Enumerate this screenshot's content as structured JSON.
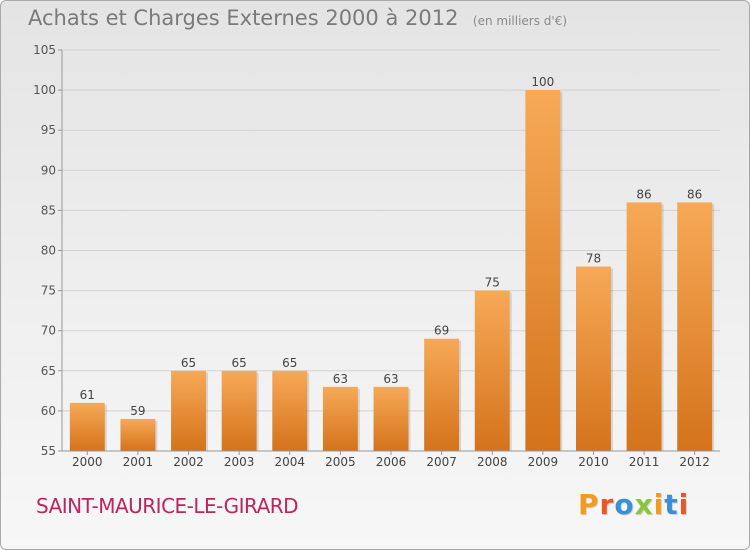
{
  "header": {
    "title": "Achats et Charges Externes 2000 à 2012",
    "unit_note": "(en milliers d'€)"
  },
  "footer": {
    "commune": "SAINT-MAURICE-LE-GIRARD",
    "logo_text": "Proxiti"
  },
  "colors": {
    "bar_light": "#f7a957",
    "bar_dark": "#d4731b",
    "commune": "#c0245f",
    "logo": [
      "#f39a1f",
      "#e8572a",
      "#3b8fd6",
      "#8bc53f",
      "#f39a1f",
      "#3b8fd6",
      "#e8572a"
    ]
  },
  "chart_data": {
    "type": "bar",
    "categories": [
      "2000",
      "2001",
      "2002",
      "2003",
      "2004",
      "2005",
      "2006",
      "2007",
      "2008",
      "2009",
      "2010",
      "2011",
      "2012"
    ],
    "values": [
      61,
      59,
      65,
      65,
      65,
      63,
      63,
      69,
      75,
      100,
      78,
      86,
      86
    ],
    "ylim": [
      55,
      105
    ],
    "yticks": [
      55,
      60,
      65,
      70,
      75,
      80,
      85,
      90,
      95,
      100,
      105
    ],
    "grid": true,
    "data_labels": true
  }
}
